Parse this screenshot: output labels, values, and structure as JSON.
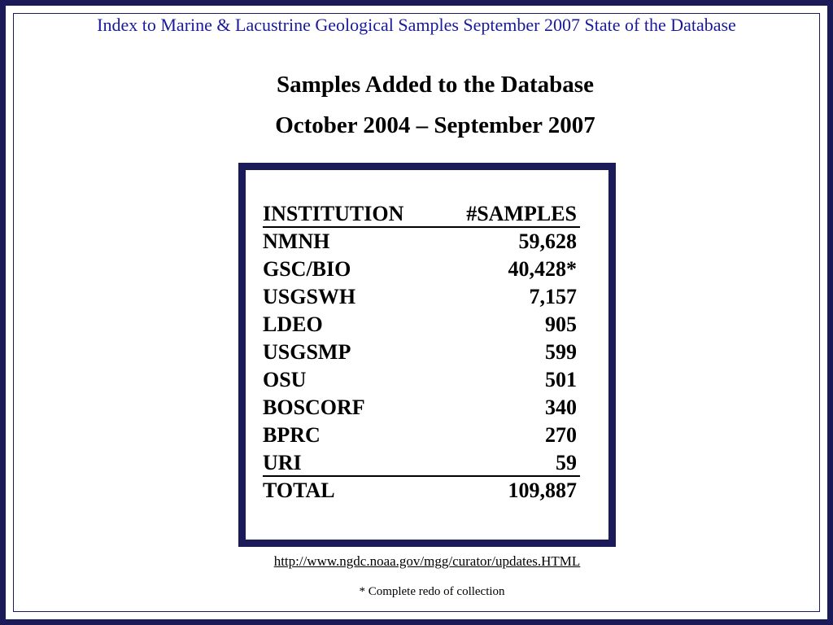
{
  "header": {
    "title": "Index to Marine & Lacustrine Geological Samples September 2007 State of the Database"
  },
  "slide": {
    "title_line1": "Samples Added to the Database",
    "title_line2": "October 2004 – September 2007"
  },
  "table": {
    "header": [
      "INSTITUTION",
      "#SAMPLES"
    ],
    "rows": [
      [
        "NMNH",
        "59,628"
      ],
      [
        "GSC/BIO",
        "40,428*"
      ],
      [
        "USGSWH",
        "7,157"
      ],
      [
        "LDEO",
        "905"
      ],
      [
        "USGSMP",
        "599"
      ],
      [
        "OSU",
        "501"
      ],
      [
        "BOSCORF",
        "340"
      ],
      [
        "BPRC",
        "270"
      ],
      [
        "URI",
        "59"
      ]
    ],
    "total": [
      "TOTAL",
      "109,887"
    ]
  },
  "footer": {
    "link": "http://www.ngdc.noaa.gov/mgg/curator/updates.HTML",
    "note": "* Complete redo of collection"
  }
}
